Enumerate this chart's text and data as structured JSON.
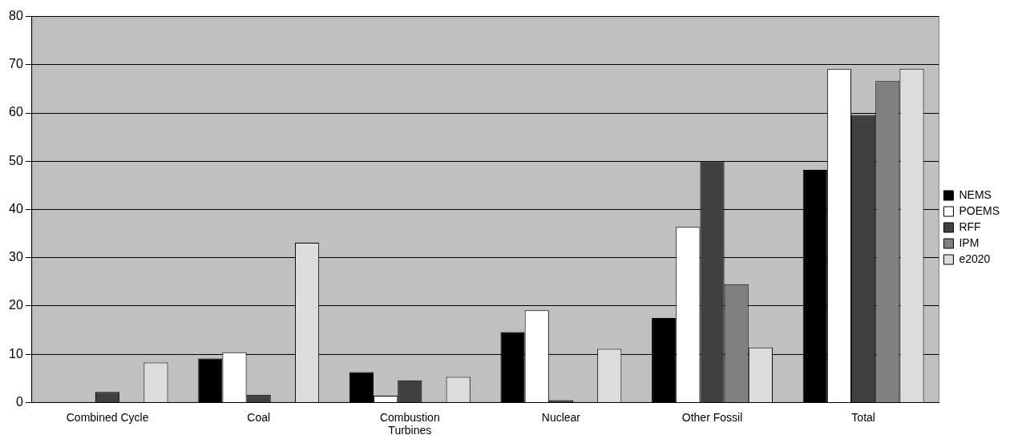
{
  "chart_data": {
    "type": "bar",
    "categories": [
      "Combined Cycle",
      "Coal",
      "Combustion Turbines",
      "Nuclear",
      "Other Fossil",
      "Total"
    ],
    "series": [
      {
        "name": "NEMS",
        "color": "#000000",
        "values": [
          null,
          9.1,
          6.3,
          14.6,
          17.5,
          48.2
        ]
      },
      {
        "name": "POEMS",
        "color": "#ffffff",
        "values": [
          null,
          10.4,
          1.4,
          19.1,
          36.4,
          69.1
        ]
      },
      {
        "name": "RFF",
        "color": "#404040",
        "values": [
          2.2,
          1.6,
          4.6,
          0.5,
          50,
          59.6
        ]
      },
      {
        "name": "IPM",
        "color": "#808080",
        "values": [
          0,
          null,
          0,
          0,
          24.5,
          66.6
        ]
      },
      {
        "name": "e2020",
        "color": "#dcdcdc",
        "values": [
          8.3,
          33.1,
          5.3,
          11.1,
          11.4,
          69.2
        ]
      }
    ],
    "ylim": [
      0,
      80
    ],
    "yticks": [
      0,
      10,
      20,
      30,
      40,
      50,
      60,
      70,
      80
    ],
    "grid": "y",
    "legend": "right"
  }
}
